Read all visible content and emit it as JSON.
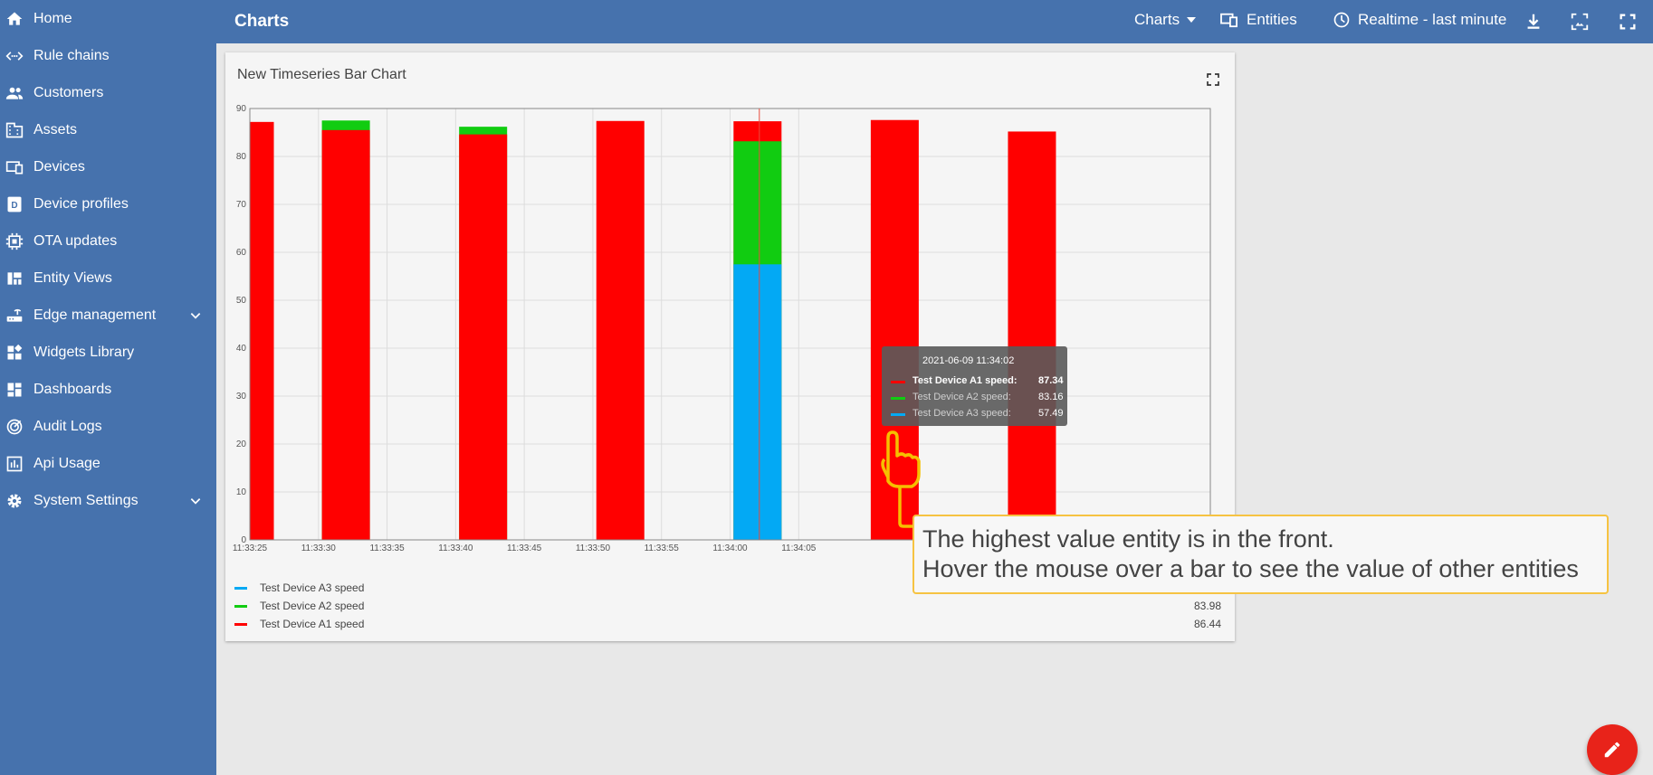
{
  "sidebar": {
    "items": [
      {
        "label": "Home",
        "icon": "home-icon"
      },
      {
        "label": "Rule chains",
        "icon": "code-arrows-icon"
      },
      {
        "label": "Customers",
        "icon": "people-icon"
      },
      {
        "label": "Assets",
        "icon": "building-icon"
      },
      {
        "label": "Devices",
        "icon": "devices-icon"
      },
      {
        "label": "Device profiles",
        "icon": "device-profile-icon"
      },
      {
        "label": "OTA updates",
        "icon": "chip-icon"
      },
      {
        "label": "Entity Views",
        "icon": "view-quilt-icon"
      },
      {
        "label": "Edge management",
        "icon": "router-icon",
        "expandable": true
      },
      {
        "label": "Widgets Library",
        "icon": "widgets-icon"
      },
      {
        "label": "Dashboards",
        "icon": "dashboard-icon"
      },
      {
        "label": "Audit Logs",
        "icon": "track-changes-icon"
      },
      {
        "label": "Api Usage",
        "icon": "bar-chart-icon"
      },
      {
        "label": "System Settings",
        "icon": "gear-icon",
        "expandable": true
      }
    ]
  },
  "topbar": {
    "title": "Charts",
    "dashboard_state": "Charts",
    "entities_label": "Entities",
    "timewindow_label": "Realtime - last minute"
  },
  "widget": {
    "title": "New Timeseries Bar Chart",
    "legend": [
      {
        "name": "Test Device A3 speed",
        "value": "",
        "color": "#03a9f4"
      },
      {
        "name": "Test Device A2 speed",
        "value": "83.98",
        "color": "#11cc11"
      },
      {
        "name": "Test Device A1 speed",
        "value": "86.44",
        "color": "#ff0000"
      }
    ]
  },
  "tooltip": {
    "date": "2021-06-09 11:34:02",
    "rows": [
      {
        "label": "Test Device A1 speed:",
        "value": "87.34",
        "color": "#ff0000"
      },
      {
        "label": "Test Device A2 speed:",
        "value": "83.16",
        "color": "#11cc11"
      },
      {
        "label": "Test Device A3 speed:",
        "value": "57.49",
        "color": "#03a9f4"
      }
    ]
  },
  "callout": {
    "line1": "The highest value entity is in the front.",
    "line2": "Hover the mouse over a bar to see the value of other entities"
  },
  "chart_data": {
    "type": "bar",
    "stacking": "overlapping, highest value in front",
    "x_ticks": [
      "11:33:25",
      "11:33:30",
      "11:33:35",
      "11:33:40",
      "11:33:45",
      "11:33:50",
      "11:33:55",
      "11:34:00",
      "11:34:05"
    ],
    "y_ticks": [
      "0",
      "10",
      "20",
      "30",
      "40",
      "50",
      "60",
      "70",
      "80",
      "90"
    ],
    "ylim": [
      0,
      90
    ],
    "grid": true,
    "hover_time": "11:34:02",
    "bars": [
      {
        "time": "11:33:25",
        "A1": 87.2,
        "A2": 0,
        "A3": 0
      },
      {
        "time": "11:33:32",
        "A1": 85.5,
        "A2": 87.5,
        "A3": 0
      },
      {
        "time": "11:33:42",
        "A1": 84.6,
        "A2": 86.2,
        "A3": 0
      },
      {
        "time": "11:33:52",
        "A1": 87.4,
        "A2": 0,
        "A3": 0
      },
      {
        "time": "11:34:02",
        "A1": 87.34,
        "A2": 83.16,
        "A3": 57.49
      },
      {
        "time": "11:34:12",
        "A1": 87.6,
        "A2": 0,
        "A3": 0
      },
      {
        "time": "11:34:22",
        "A1": 85.2,
        "A2": 0,
        "A3": 0
      }
    ],
    "series": [
      {
        "name": "Test Device A1 speed",
        "color": "#ff0000"
      },
      {
        "name": "Test Device A2 speed",
        "color": "#11cc11"
      },
      {
        "name": "Test Device A3 speed",
        "color": "#03a9f4"
      }
    ]
  }
}
